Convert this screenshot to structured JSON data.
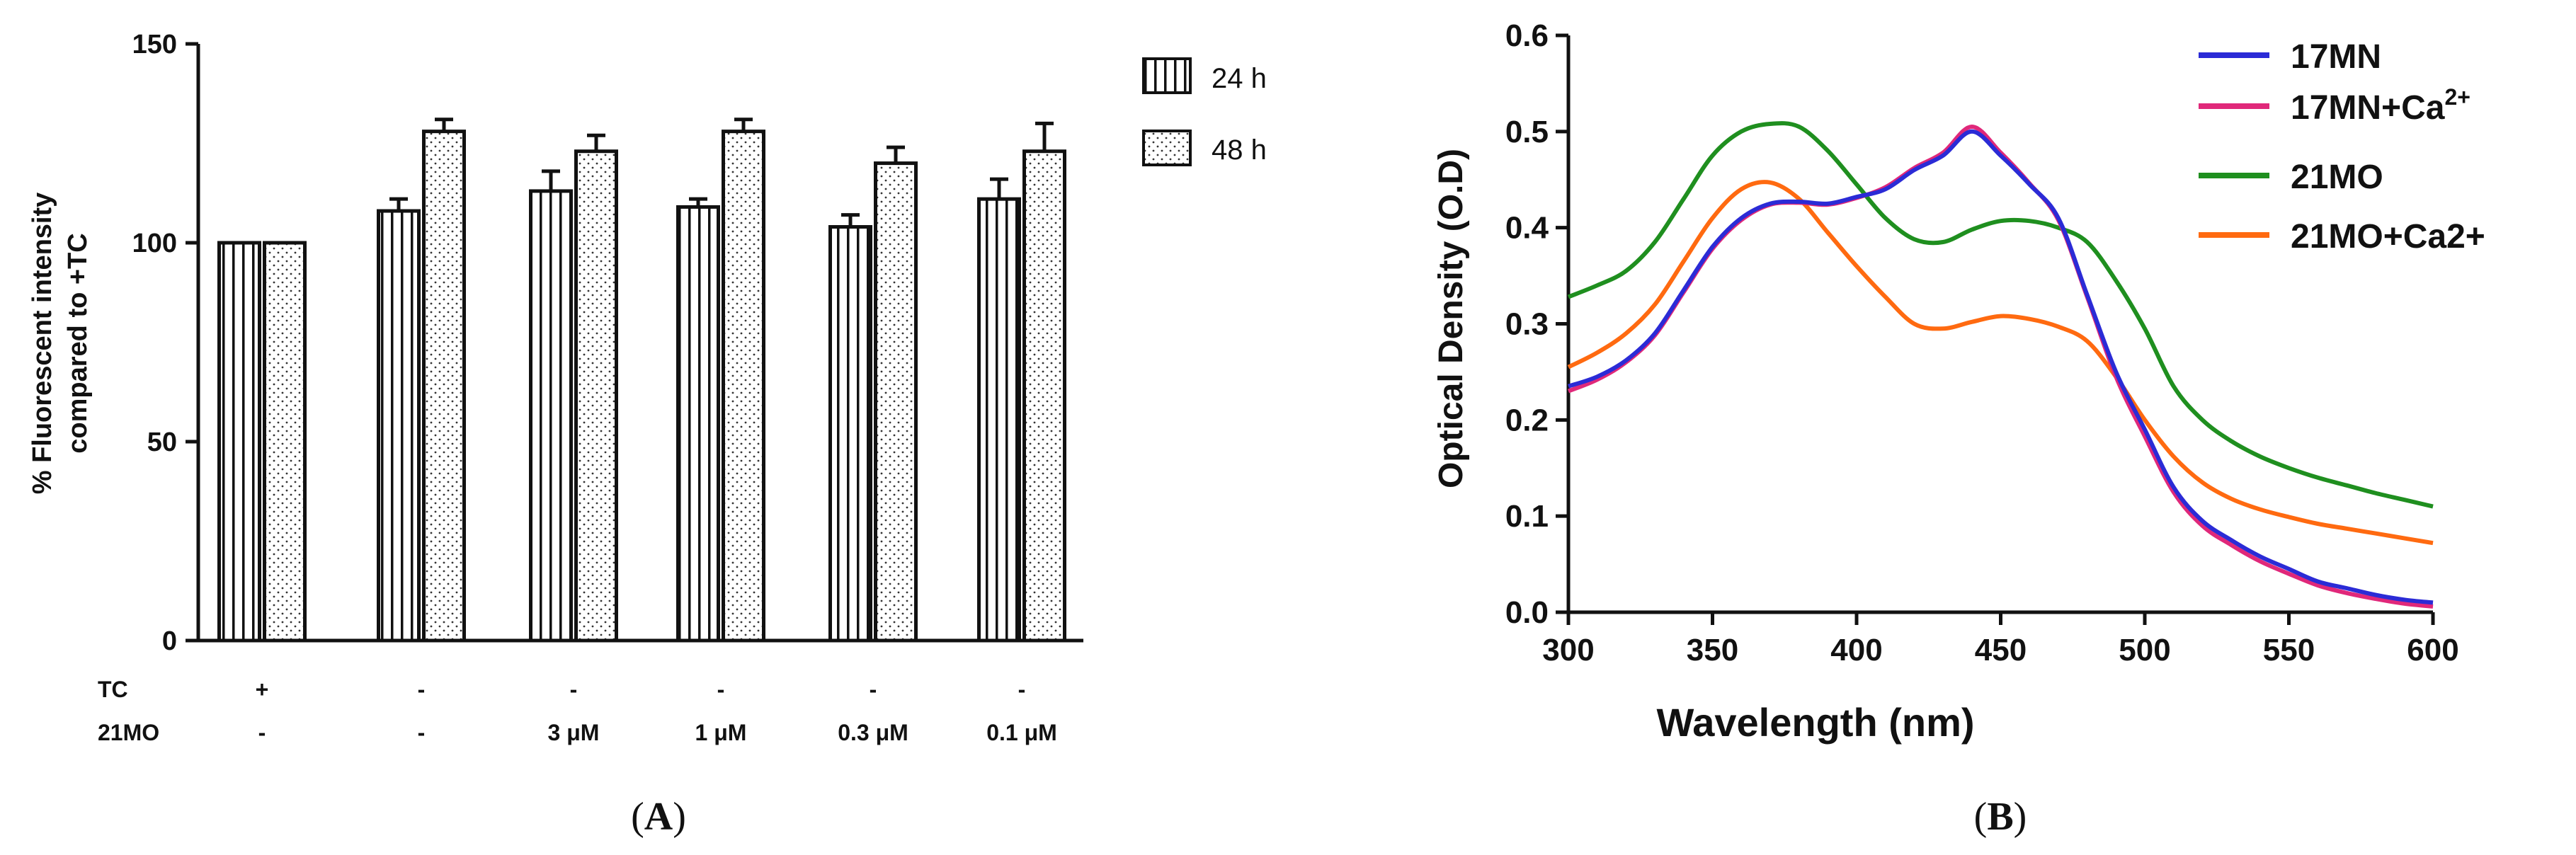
{
  "chart_data": [
    {
      "type": "bar",
      "panel_label": "A",
      "ylabel_line1": "% Fluorescent intensity",
      "ylabel_line2": "compared to +TC",
      "ylim": [
        0,
        150
      ],
      "yticks": [
        0,
        50,
        100,
        150
      ],
      "legend": [
        "24 h",
        "48 h"
      ],
      "row_labels": {
        "tc": "TC",
        "mo": "21MO"
      },
      "groups": [
        {
          "tc": "+",
          "mo": "-"
        },
        {
          "tc": "-",
          "mo": "-"
        },
        {
          "tc": "-",
          "mo": "3 μM"
        },
        {
          "tc": "-",
          "mo": "1 μM"
        },
        {
          "tc": "-",
          "mo": "0.3 μM"
        },
        {
          "tc": "-",
          "mo": "0.1 μM"
        }
      ],
      "series": [
        {
          "name": "24 h",
          "values": [
            100,
            108,
            113,
            109,
            104,
            111
          ],
          "errors": [
            0,
            3,
            5,
            2,
            3,
            5
          ]
        },
        {
          "name": "48 h",
          "values": [
            100,
            128,
            123,
            128,
            120,
            123
          ],
          "errors": [
            0,
            3,
            4,
            3,
            4,
            7
          ]
        }
      ]
    },
    {
      "type": "line",
      "panel_label": "B",
      "xlabel": "Wavelength (nm)",
      "ylabel": "Optical Density (O.D)",
      "xlim": [
        300,
        600
      ],
      "ylim": [
        0,
        0.6
      ],
      "xticks": [
        "300",
        "350",
        "400",
        "450",
        "500",
        "550",
        "600"
      ],
      "yticks": [
        "0.0",
        "0.1",
        "0.2",
        "0.3",
        "0.4",
        "0.5",
        "0.6"
      ],
      "x": [
        300,
        310,
        320,
        330,
        340,
        350,
        360,
        370,
        380,
        390,
        400,
        410,
        420,
        430,
        440,
        450,
        460,
        470,
        480,
        490,
        500,
        510,
        520,
        530,
        540,
        550,
        560,
        570,
        580,
        590,
        600
      ],
      "series": [
        {
          "name": "17MN",
          "color": "#2b2bd6",
          "values": [
            0.235,
            0.245,
            0.262,
            0.29,
            0.335,
            0.38,
            0.41,
            0.425,
            0.427,
            0.425,
            0.432,
            0.44,
            0.46,
            0.475,
            0.5,
            0.475,
            0.445,
            0.41,
            0.33,
            0.25,
            0.19,
            0.13,
            0.095,
            0.075,
            0.058,
            0.045,
            0.032,
            0.025,
            0.018,
            0.013,
            0.01
          ]
        },
        {
          "name": "17MN+Ca",
          "sup": "2+",
          "color": "#e0287a",
          "values": [
            0.23,
            0.242,
            0.26,
            0.288,
            0.333,
            0.378,
            0.408,
            0.424,
            0.426,
            0.424,
            0.431,
            0.442,
            0.462,
            0.478,
            0.505,
            0.478,
            0.446,
            0.408,
            0.328,
            0.245,
            0.183,
            0.125,
            0.09,
            0.07,
            0.053,
            0.04,
            0.028,
            0.02,
            0.014,
            0.009,
            0.006
          ]
        },
        {
          "name": "21MO",
          "color": "#1f8f1f",
          "values": [
            0.328,
            0.34,
            0.355,
            0.385,
            0.43,
            0.475,
            0.5,
            0.508,
            0.505,
            0.48,
            0.445,
            0.41,
            0.388,
            0.385,
            0.398,
            0.407,
            0.407,
            0.4,
            0.385,
            0.345,
            0.295,
            0.235,
            0.2,
            0.178,
            0.162,
            0.15,
            0.14,
            0.132,
            0.124,
            0.117,
            0.11
          ]
        },
        {
          "name": "21MO+Ca2+",
          "color": "#ff6a10",
          "values": [
            0.255,
            0.27,
            0.29,
            0.32,
            0.365,
            0.41,
            0.44,
            0.447,
            0.43,
            0.395,
            0.36,
            0.328,
            0.3,
            0.295,
            0.302,
            0.308,
            0.305,
            0.297,
            0.282,
            0.245,
            0.2,
            0.162,
            0.135,
            0.118,
            0.107,
            0.099,
            0.092,
            0.087,
            0.082,
            0.077,
            0.072
          ]
        }
      ]
    }
  ]
}
